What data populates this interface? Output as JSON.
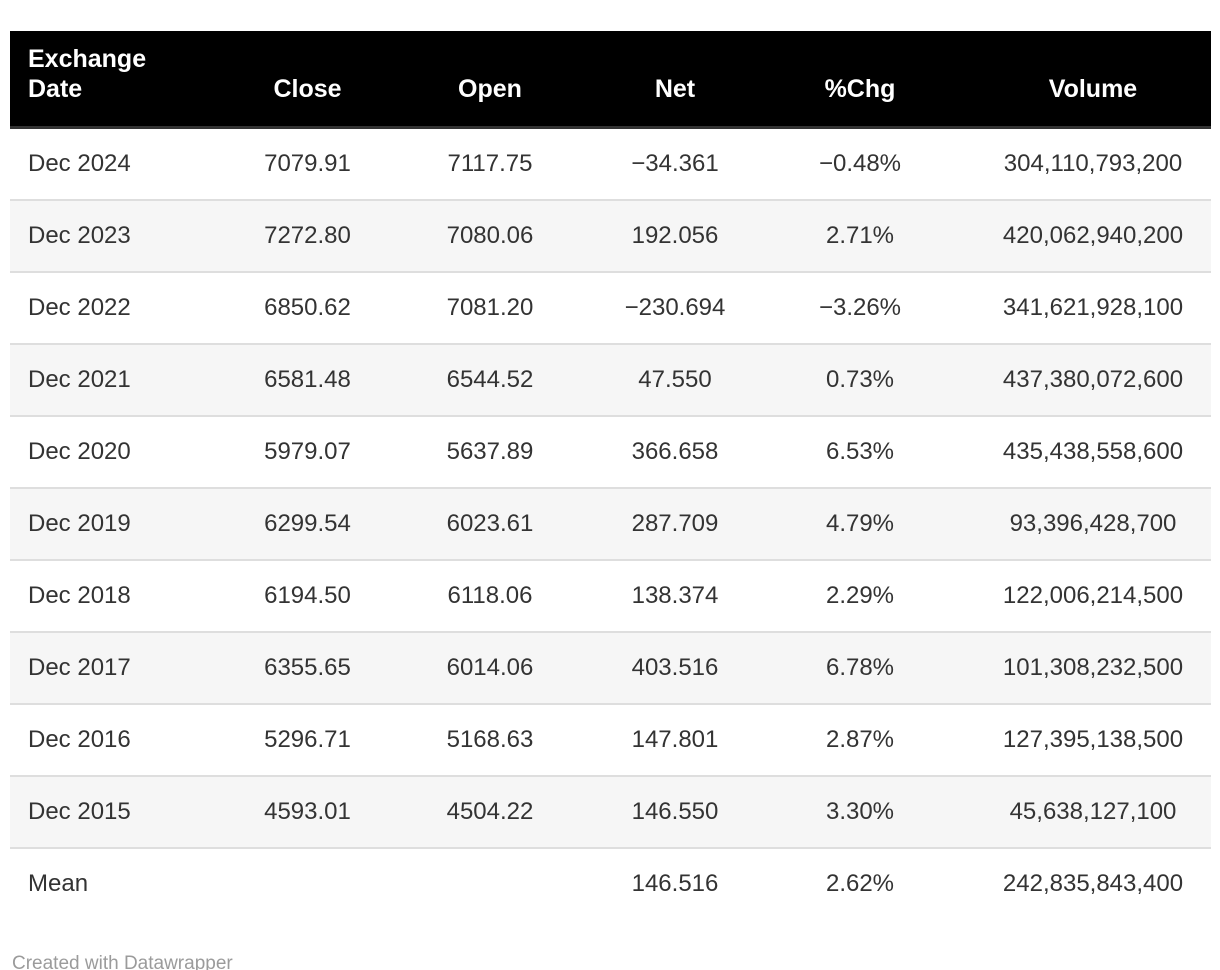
{
  "chart_data": {
    "type": "table",
    "title": "",
    "columns": [
      {
        "label": "Exchange Date",
        "align": "left"
      },
      {
        "label": "Close",
        "align": "center"
      },
      {
        "label": "Open",
        "align": "center"
      },
      {
        "label": "Net",
        "align": "center"
      },
      {
        "label": "%Chg",
        "align": "center"
      },
      {
        "label": "Volume",
        "align": "center"
      }
    ],
    "rows": [
      [
        "Dec 2024",
        "7079.91",
        "7117.75",
        "−34.361",
        "−0.48%",
        "304,110,793,200"
      ],
      [
        "Dec 2023",
        "7272.80",
        "7080.06",
        "192.056",
        "2.71%",
        "420,062,940,200"
      ],
      [
        "Dec 2022",
        "6850.62",
        "7081.20",
        "−230.694",
        "−3.26%",
        "341,621,928,100"
      ],
      [
        "Dec 2021",
        "6581.48",
        "6544.52",
        "47.550",
        "0.73%",
        "437,380,072,600"
      ],
      [
        "Dec 2020",
        "5979.07",
        "5637.89",
        "366.658",
        "6.53%",
        "435,438,558,600"
      ],
      [
        "Dec 2019",
        "6299.54",
        "6023.61",
        "287.709",
        "4.79%",
        "93,396,428,700"
      ],
      [
        "Dec 2018",
        "6194.50",
        "6118.06",
        "138.374",
        "2.29%",
        "122,006,214,500"
      ],
      [
        "Dec 2017",
        "6355.65",
        "6014.06",
        "403.516",
        "6.78%",
        "101,308,232,500"
      ],
      [
        "Dec 2016",
        "5296.71",
        "5168.63",
        "147.801",
        "2.87%",
        "127,395,138,500"
      ],
      [
        "Dec 2015",
        "4593.01",
        "4504.22",
        "146.550",
        "3.30%",
        "45,638,127,100"
      ],
      [
        "Mean",
        "",
        "",
        "146.516",
        "2.62%",
        "242,835,843,400"
      ]
    ]
  },
  "footer": {
    "attribution": "Created with Datawrapper"
  },
  "colors": {
    "header_bg": "#000000",
    "header_text": "#ffffff",
    "header_border": "#333333",
    "body_text": "#333333",
    "row_alt_bg": "#f6f6f6",
    "row_separator": "#dedede",
    "footer_text": "#9b9b9b",
    "page_bg": "#ffffff"
  }
}
